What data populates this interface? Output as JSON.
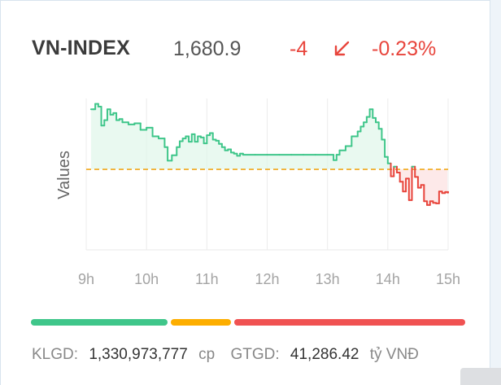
{
  "index": {
    "name": "VN-INDEX",
    "value": "1,680.9",
    "change": "-4",
    "change_pct": "-0.23%",
    "direction_icon": "arrow-down-left-icon",
    "down_color": "#e8453c",
    "up_color": "#3fc68a",
    "reference_color": "#f1a81a"
  },
  "chart_data": {
    "type": "line",
    "ylabel": "Values",
    "x_ticks": [
      "9h",
      "10h",
      "11h",
      "12h",
      "13h",
      "14h",
      "15h"
    ],
    "reference_value": 1684.9,
    "ylim": [
      1670,
      1698
    ],
    "series": [
      {
        "x": [
          9.08,
          9.12,
          9.15,
          9.2,
          9.25,
          9.3,
          9.35,
          9.4,
          9.45,
          9.5,
          9.55,
          9.6,
          9.7,
          9.8,
          9.9,
          10.0,
          10.1,
          10.2,
          10.3,
          10.35,
          10.42,
          10.5,
          10.55,
          10.6,
          10.65,
          10.7,
          10.75,
          10.8,
          10.85,
          10.9,
          10.95,
          11.0,
          11.05,
          11.1,
          11.15,
          11.2,
          11.25,
          11.3,
          11.35,
          11.4,
          11.45,
          11.5,
          11.55,
          11.6,
          11.8,
          12.0,
          12.2,
          12.4,
          12.6,
          12.8,
          13.0,
          13.1,
          13.15,
          13.2,
          13.3,
          13.4,
          13.5,
          13.55,
          13.6,
          13.65,
          13.7,
          13.75,
          13.8,
          13.85,
          13.9,
          13.95,
          14.0,
          14.05,
          14.1,
          14.15,
          14.2,
          14.25,
          14.3,
          14.35,
          14.4,
          14.45,
          14.5,
          14.55,
          14.6,
          14.65,
          14.7,
          14.75,
          14.8,
          14.85,
          14.9,
          14.95,
          15.0
        ],
        "y": [
          1696,
          1696,
          1697,
          1696.5,
          1693,
          1694,
          1696,
          1695,
          1695.3,
          1694,
          1694.2,
          1693.6,
          1693.2,
          1693.4,
          1692.2,
          1692.6,
          1691,
          1690.6,
          1689,
          1686.5,
          1687.5,
          1689,
          1690.1,
          1690.6,
          1691,
          1690,
          1691.4,
          1690,
          1691,
          1690.8,
          1689.7,
          1691.2,
          1691.6,
          1690.4,
          1690.2,
          1689.6,
          1689,
          1688.4,
          1688.6,
          1688,
          1687.8,
          1687.4,
          1687.8,
          1687.6,
          1687.6,
          1687.6,
          1687.6,
          1687.6,
          1687.6,
          1687.6,
          1687.6,
          1686.6,
          1687.6,
          1688.4,
          1689.2,
          1691,
          1691.9,
          1692.8,
          1693.6,
          1694.6,
          1696,
          1694.4,
          1693.6,
          1692.4,
          1690.4,
          1687.2,
          1686,
          1683.6,
          1685.4,
          1684.3,
          1682.6,
          1680.8,
          1683.2,
          1679.2,
          1685.4,
          1683.5,
          1681.5,
          1682,
          1679,
          1678.3,
          1679,
          1678.7,
          1678.6,
          1680.8,
          1680.5,
          1680.7,
          1680.6
        ]
      }
    ]
  },
  "volume_bar": {
    "up_fraction": 0.32,
    "unchanged_fraction": 0.14,
    "down_fraction": 0.54
  },
  "footer": {
    "klgd_label": "KLGD:",
    "klgd_value": "1,330,973,777",
    "klgd_unit": "cp",
    "gtgd_label": "GTGD:",
    "gtgd_value": "41,286.42",
    "gtgd_unit": "tỷ VNĐ"
  }
}
